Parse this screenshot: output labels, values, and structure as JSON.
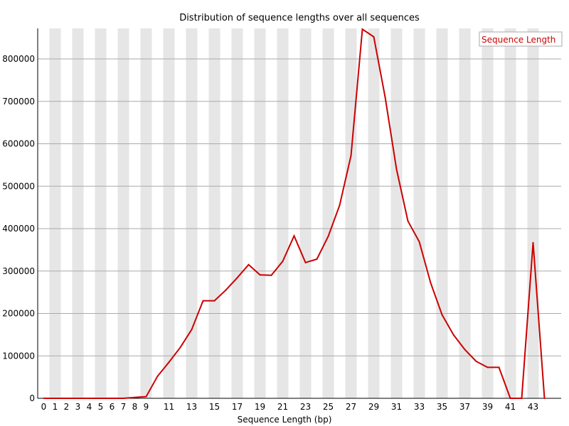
{
  "chart_data": {
    "type": "line",
    "title": "Distribution of sequence lengths over all sequences",
    "xlabel": "Sequence Length (bp)",
    "ylabel": "",
    "x": [
      0,
      1,
      2,
      3,
      4,
      5,
      6,
      7,
      8,
      9,
      10,
      11,
      12,
      13,
      14,
      15,
      16,
      17,
      18,
      19,
      20,
      21,
      22,
      23,
      24,
      25,
      26,
      27,
      28,
      29,
      30,
      31,
      32,
      33,
      34,
      35,
      36,
      37,
      38,
      39,
      40,
      41,
      42,
      43,
      44
    ],
    "x_tick_labels": [
      "0",
      "1",
      "2",
      "3",
      "4",
      "5",
      "6",
      "7",
      "8",
      "9",
      "11",
      "13",
      "15",
      "17",
      "19",
      "21",
      "23",
      "25",
      "27",
      "29",
      "31",
      "33",
      "35",
      "37",
      "39",
      "41",
      "43"
    ],
    "ylim": [
      0,
      872000
    ],
    "y_ticks": [
      0,
      100000,
      200000,
      300000,
      400000,
      500000,
      600000,
      700000,
      800000
    ],
    "y_tick_labels": [
      "0",
      "100000",
      "200000",
      "300000",
      "400000",
      "500000",
      "600000",
      "700000",
      "800000"
    ],
    "grid": "horizontal lines with alternating vertical bands",
    "legend_position": "top-right",
    "series": [
      {
        "name": "Sequence Length",
        "color": "#cc0000",
        "values": [
          0,
          0,
          0,
          0,
          0,
          0,
          0,
          0,
          2000,
          4000,
          52000,
          85000,
          120000,
          162000,
          230000,
          230000,
          255000,
          284000,
          315000,
          291000,
          290000,
          323000,
          383000,
          320000,
          328000,
          382000,
          455000,
          572000,
          870000,
          852000,
          710000,
          540000,
          418000,
          369000,
          272000,
          197000,
          150000,
          115000,
          87000,
          73000,
          73000,
          0,
          0,
          367000,
          0
        ]
      }
    ]
  }
}
